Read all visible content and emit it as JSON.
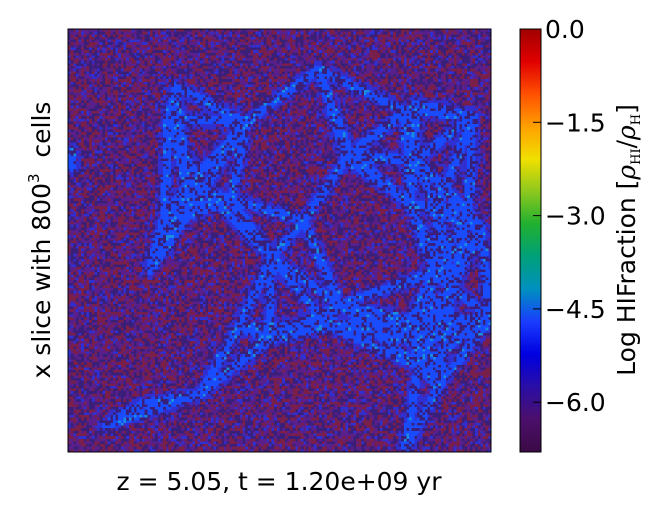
{
  "chart_data": {
    "type": "heatmap",
    "title": "",
    "xlabel": "z = 5.05, t = 1.20e+09 yr",
    "ylabel": {
      "prefix": "x slice with 800",
      "superscript": "3",
      "suffix": "  cells"
    },
    "colorbar": {
      "label_prefix": "Log HIFraction [",
      "label_math_num": "ρ",
      "label_math_num_sub": "HI",
      "label_math_sep": "/",
      "label_math_den": "ρ",
      "label_math_den_sub": "H",
      "label_suffix": "]",
      "range": [
        -6.8,
        0.0
      ],
      "ticks": [
        0.0,
        -1.5,
        -3.0,
        -4.5,
        -6.0
      ],
      "tick_labels": [
        "0.0",
        "−1.5",
        "−3.0",
        "−4.5",
        "−6.0"
      ],
      "colormap": [
        "#3b0a45",
        "#4b0f6b",
        "#2a0ea5",
        "#0000e0",
        "#1a3cff",
        "#0090c0",
        "#00a07a",
        "#20b030",
        "#8cc81e",
        "#f0e000",
        "#ffa000",
        "#ff5000",
        "#e00000",
        "#a00000"
      ]
    },
    "image": {
      "grid": 160,
      "background_value": -6.8,
      "filament_value": -6.3,
      "colors": {
        "background": "#3a1f7a",
        "purple": "#5a1f8a",
        "dark_red": "#7a1e4a",
        "blue": "#2f2fd2",
        "bright_blue": "#1a4cff",
        "cyan_hint": "#1a8ce0"
      }
    }
  }
}
